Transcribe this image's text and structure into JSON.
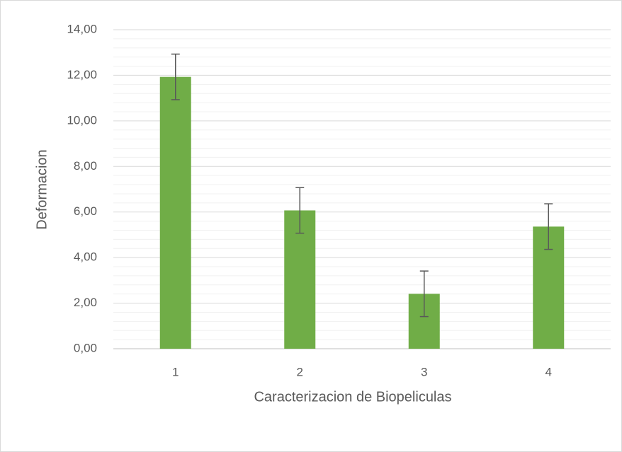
{
  "chart_data": {
    "type": "bar",
    "x_label": "Caracterizacion de Biopeliculas",
    "y_label": "Deformacion",
    "categories": [
      "1",
      "2",
      "3",
      "4"
    ],
    "values": [
      11.93,
      6.07,
      2.41,
      5.36
    ],
    "errors": [
      1,
      1,
      1,
      1
    ],
    "color": "#70ad47",
    "ylim": [
      0,
      14
    ],
    "yticks": [
      {
        "value": 0,
        "label": "0,00"
      },
      {
        "value": 2,
        "label": "2,00"
      },
      {
        "value": 4,
        "label": "4,00"
      },
      {
        "value": 6,
        "label": "6,00"
      },
      {
        "value": 8,
        "label": "8,00"
      },
      {
        "value": 10,
        "label": "10,00"
      },
      {
        "value": 12,
        "label": "12,00"
      },
      {
        "value": 14,
        "label": "14,00"
      }
    ],
    "grid": true,
    "minor_grid_divisions": 5
  }
}
